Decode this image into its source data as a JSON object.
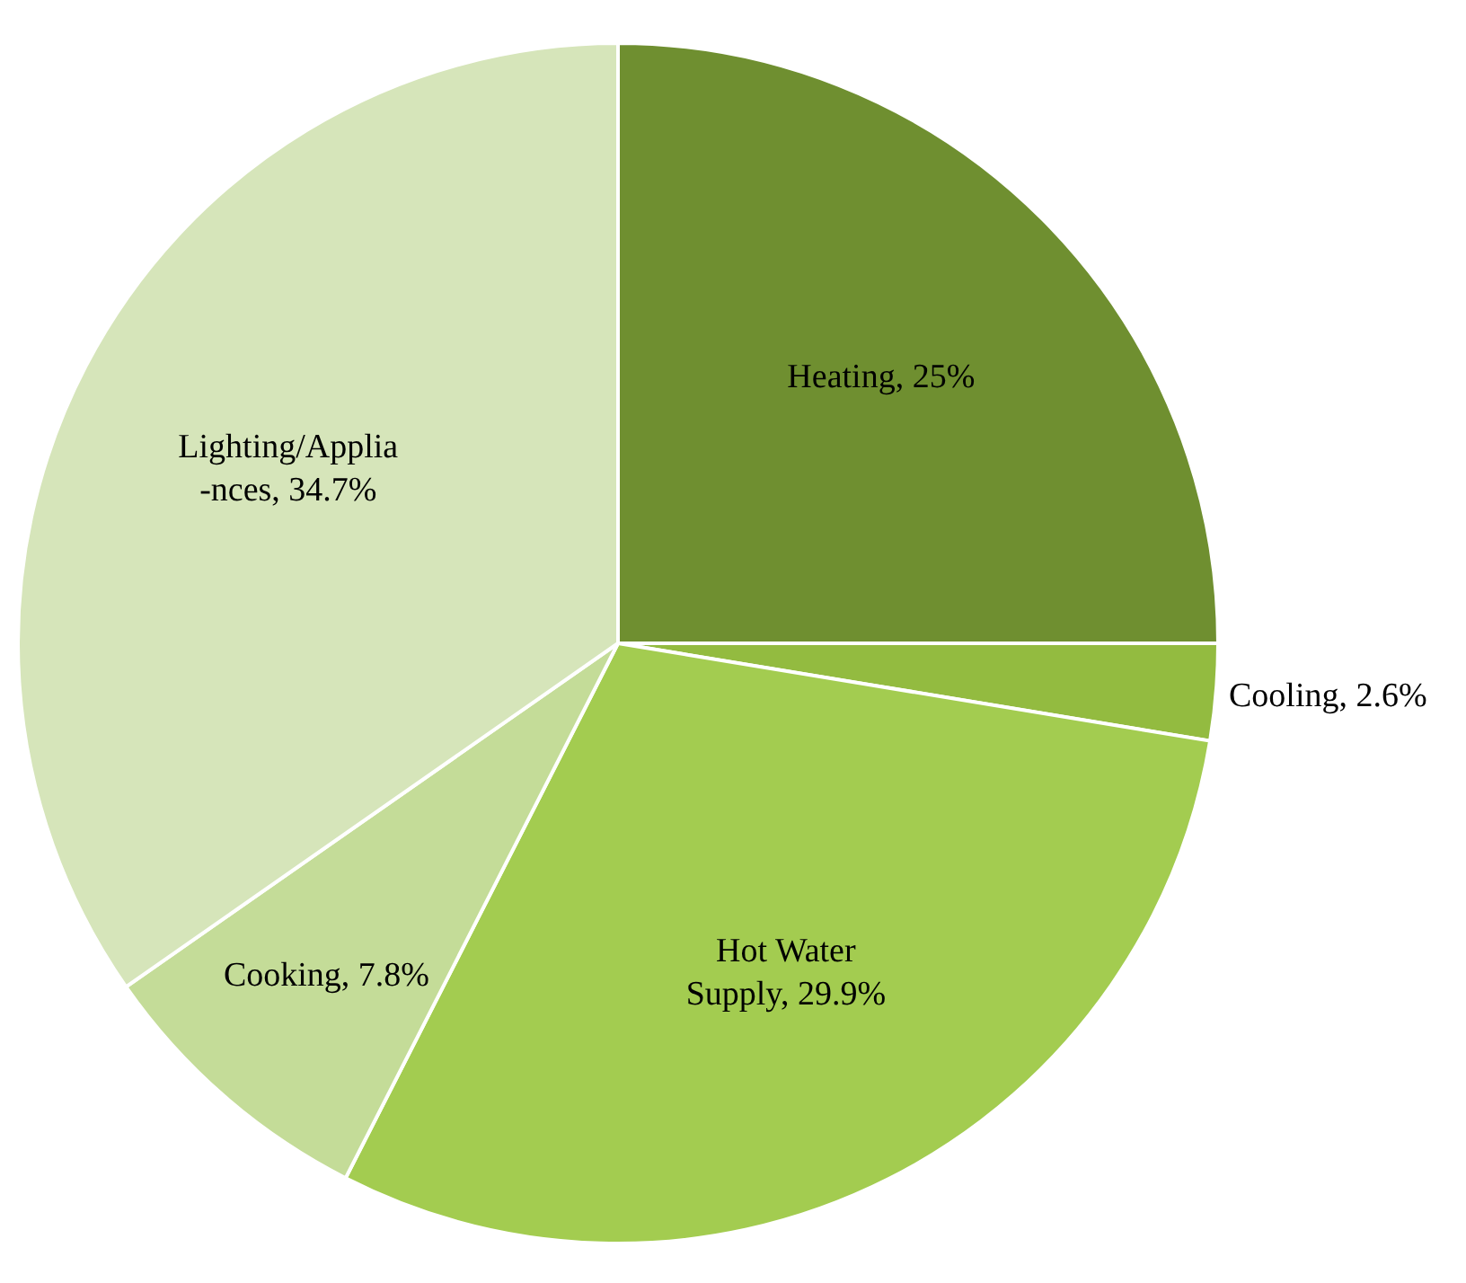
{
  "chart_data": {
    "type": "pie",
    "categories": [
      "Heating",
      "Cooling",
      "Hot Water\nSupply",
      "Cooking",
      "Lighting/Applia\n-nces"
    ],
    "values": [
      25,
      2.6,
      29.9,
      7.8,
      34.7
    ],
    "value_labels": [
      "25%",
      "2.6%",
      "29.9%",
      "7.8%",
      "34.7%"
    ],
    "colors": [
      "#6f8f30",
      "#93bb40",
      "#a3cc50",
      "#c4dc98",
      "#d6e5ba"
    ]
  }
}
